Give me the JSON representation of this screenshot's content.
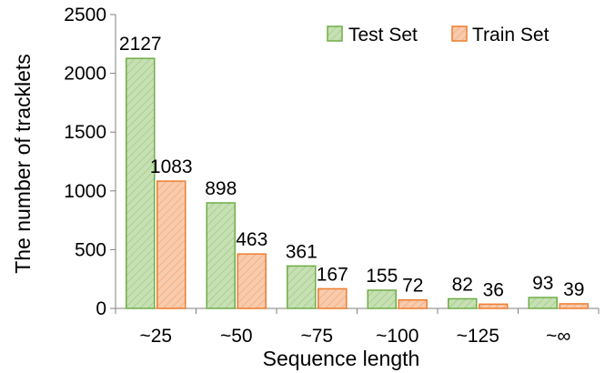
{
  "chart_data": {
    "type": "bar",
    "xlabel": "Sequence length",
    "ylabel": "The number of tracklets",
    "ylim": [
      0,
      2500
    ],
    "yticks": [
      "0",
      "500",
      "1000",
      "1500",
      "2000",
      "2500"
    ],
    "categories": [
      "~25",
      "~50",
      "~75",
      "~100",
      "~125",
      "~∞"
    ],
    "series": [
      {
        "name": "Test Set",
        "values": [
          2127,
          898,
          361,
          155,
          82,
          93
        ],
        "fill": "#c6e0b4",
        "stroke": "#70ad47"
      },
      {
        "name": "Train Set",
        "values": [
          1083,
          463,
          167,
          72,
          36,
          39
        ],
        "fill": "#f8cbad",
        "stroke": "#ed7d31"
      }
    ],
    "grid": false,
    "legend": "top-right"
  }
}
